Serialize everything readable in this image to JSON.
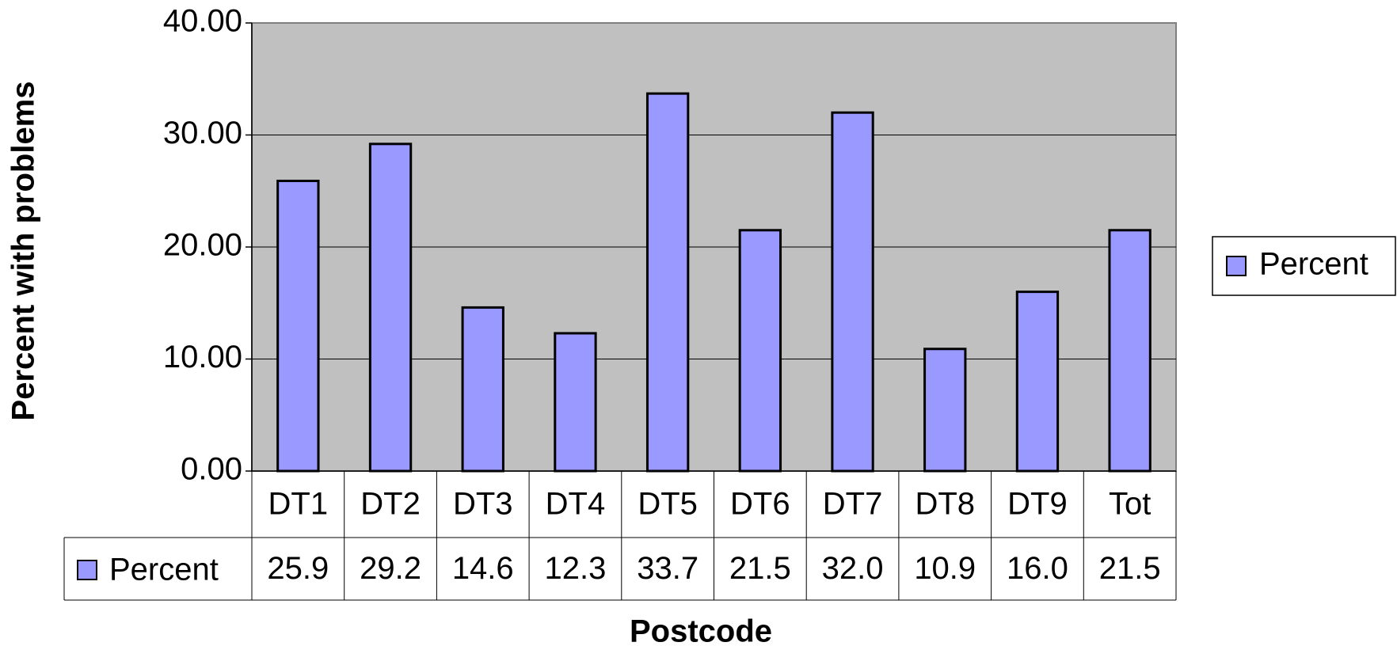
{
  "chart_data": {
    "type": "bar",
    "x_label": "Postcode",
    "y_label": "Percent with problems",
    "categories": [
      "DT1",
      "DT2",
      "DT3",
      "DT4",
      "DT5",
      "DT6",
      "DT7",
      "DT8",
      "DT9",
      "Tot"
    ],
    "series": [
      {
        "name": "Percent",
        "color": "#9999ff",
        "values": [
          25.9,
          29.2,
          14.6,
          12.3,
          33.7,
          21.5,
          32.0,
          10.9,
          16.0,
          21.5
        ],
        "value_labels": [
          "25.9",
          "29.2",
          "14.6",
          "12.3",
          "33.7",
          "21.5",
          "32.0",
          "10.9",
          "16.0",
          "21.5"
        ]
      }
    ],
    "ylim": [
      0,
      40
    ],
    "yticks": [
      {
        "value": 0,
        "label": "0.00"
      },
      {
        "value": 10,
        "label": "10.00"
      },
      {
        "value": 20,
        "label": "20.00"
      },
      {
        "value": 30,
        "label": "30.00"
      },
      {
        "value": 40,
        "label": "40.00"
      }
    ],
    "grid": true,
    "legend": "right",
    "data_table": true
  }
}
